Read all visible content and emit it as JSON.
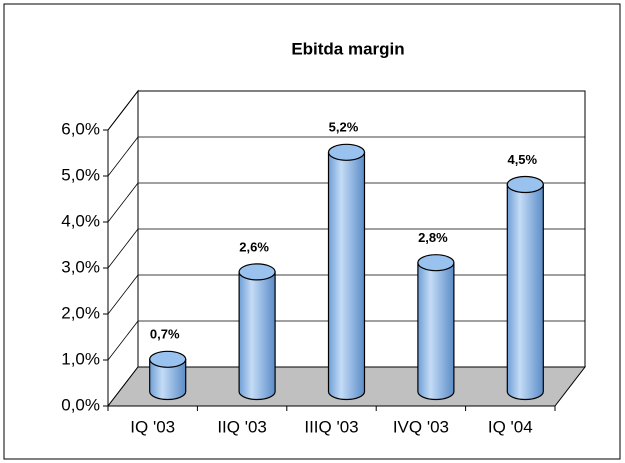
{
  "chart_data": {
    "type": "bar",
    "title": "Ebitda margin",
    "categories": [
      "IQ '03",
      "IIQ '03",
      "IIIQ '03",
      "IVQ '03",
      "IQ '04"
    ],
    "values": [
      0.7,
      2.6,
      5.2,
      2.8,
      4.5
    ],
    "value_labels": [
      "0,7%",
      "2,6%",
      "5,2%",
      "2,8%",
      "4,5%"
    ],
    "color": "#99c2ee",
    "ylim": [
      0,
      6
    ],
    "yticks": [
      {
        "value": 0,
        "label": "0,0%"
      },
      {
        "value": 1,
        "label": "1,0%"
      },
      {
        "value": 2,
        "label": "2,0%"
      },
      {
        "value": 3,
        "label": "3,0%"
      },
      {
        "value": 4,
        "label": "4,0%"
      },
      {
        "value": 5,
        "label": "5,0%"
      },
      {
        "value": 6,
        "label": "6,0%"
      }
    ],
    "grid": true
  }
}
